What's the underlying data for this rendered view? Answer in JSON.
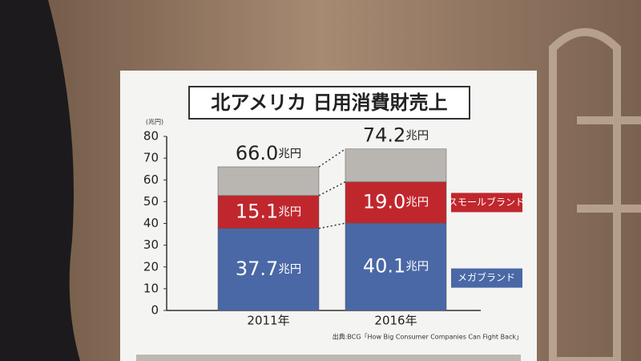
{
  "chart_data": {
    "type": "stacked-bar",
    "title": "北アメリカ 日用消費財売上",
    "y_unit": "(兆円)",
    "value_unit": "兆円",
    "categories": [
      "2011年",
      "2016年"
    ],
    "series": [
      {
        "name": "メガブランド",
        "color": "#4a68a6",
        "values": [
          37.7,
          40.1
        ],
        "value_labels": [
          "37.7",
          "40.1"
        ]
      },
      {
        "name": "スモールブランド",
        "color": "#c0272d",
        "values": [
          15.1,
          19.0
        ],
        "value_labels": [
          "15.1",
          "19.0"
        ]
      },
      {
        "color": "#b9b5b1",
        "values": [
          13.2,
          15.1
        ]
      }
    ],
    "totals": [
      66.0,
      74.2
    ],
    "total_labels": [
      "66.0",
      "74.2"
    ],
    "ylim": [
      0,
      80
    ],
    "yticks": [
      0,
      10,
      20,
      30,
      40,
      50,
      60,
      70,
      80
    ],
    "source": "出典:BCG「How Big Consumer Companies Can Fight Back」"
  }
}
